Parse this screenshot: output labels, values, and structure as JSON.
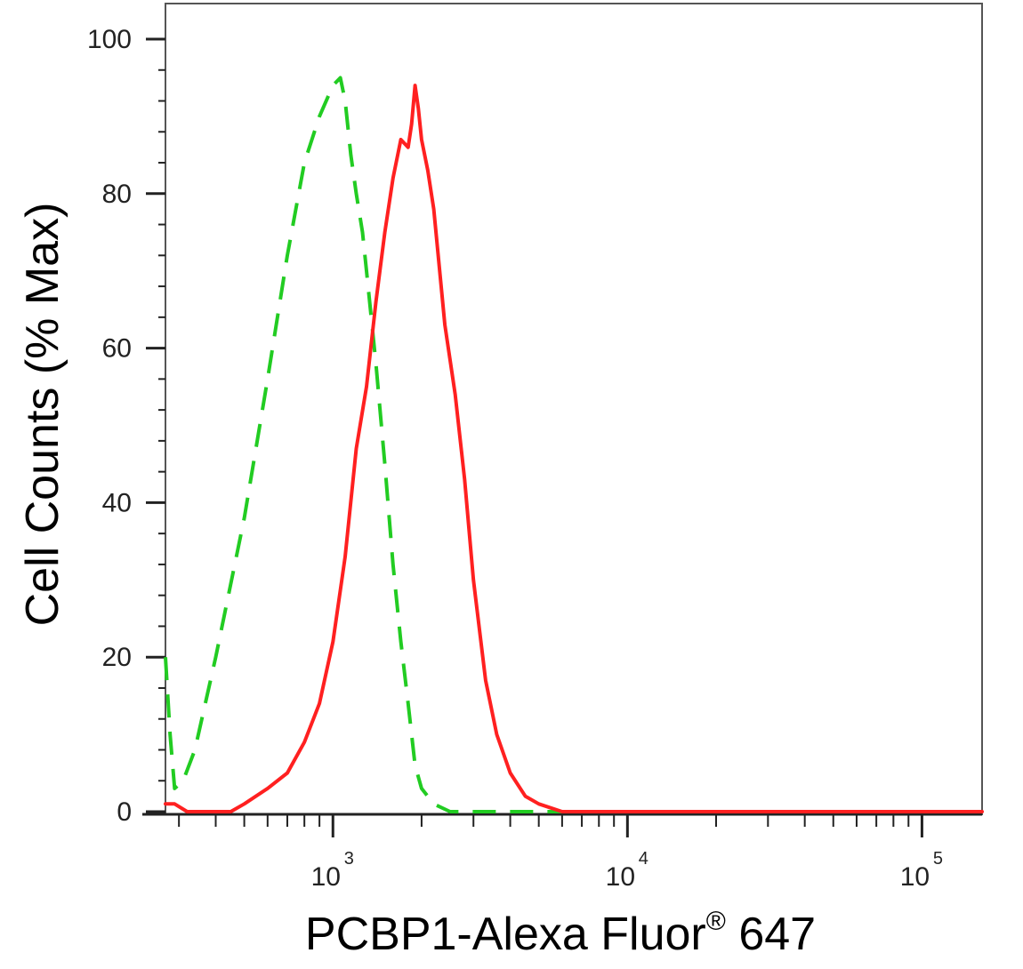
{
  "chart_data": {
    "type": "line",
    "title": "",
    "xlabel": "PCBP1-Alexa Fluor",
    "xlabel_superscript": "®",
    "xlabel_suffix": "647",
    "ylabel": "Cell Counts (% Max)",
    "x_scale": "log",
    "xlim": [
      270,
      160000
    ],
    "ylim": [
      0,
      100
    ],
    "y_ticks": [
      0,
      20,
      40,
      60,
      80,
      100
    ],
    "x_ticks": [
      {
        "value": 1000,
        "base": "10",
        "exponent": "3"
      },
      {
        "value": 10000,
        "base": "10",
        "exponent": "4"
      },
      {
        "value": 100000,
        "base": "10",
        "exponent": "5"
      }
    ],
    "grid": false,
    "legend": "none",
    "series": [
      {
        "color": "#22cc22",
        "style": "dashed",
        "x": [
          270,
          280,
          290,
          310,
          340,
          400,
          500,
          600,
          700,
          800,
          900,
          1000,
          1060,
          1100,
          1150,
          1200,
          1260,
          1300,
          1400,
          1500,
          1600,
          1700,
          1800,
          1900,
          2000,
          2200,
          2500,
          3000,
          5000,
          10000,
          50000,
          160000
        ],
        "y": [
          20,
          10,
          3,
          4,
          8,
          20,
          38,
          56,
          72,
          84,
          90,
          94,
          95,
          92,
          85,
          80,
          75,
          70,
          58,
          45,
          32,
          22,
          14,
          6,
          3,
          1,
          0,
          0,
          0,
          0,
          0,
          0
        ]
      },
      {
        "color": "#ff2020",
        "style": "solid",
        "x": [
          270,
          290,
          320,
          350,
          400,
          450,
          500,
          600,
          700,
          800,
          900,
          1000,
          1100,
          1200,
          1300,
          1400,
          1500,
          1600,
          1700,
          1800,
          1850,
          1900,
          1950,
          2000,
          2100,
          2200,
          2400,
          2600,
          2800,
          3000,
          3300,
          3600,
          4000,
          4500,
          5000,
          6000,
          7000,
          10000,
          50000,
          160000
        ],
        "y": [
          1,
          1,
          0,
          0,
          0,
          0,
          1,
          3,
          5,
          9,
          14,
          22,
          33,
          47,
          55,
          66,
          75,
          82,
          87,
          86,
          89,
          94,
          91,
          87,
          83,
          78,
          63,
          54,
          43,
          30,
          17,
          10,
          5,
          2,
          1,
          0,
          0,
          0,
          0,
          0
        ]
      }
    ]
  }
}
